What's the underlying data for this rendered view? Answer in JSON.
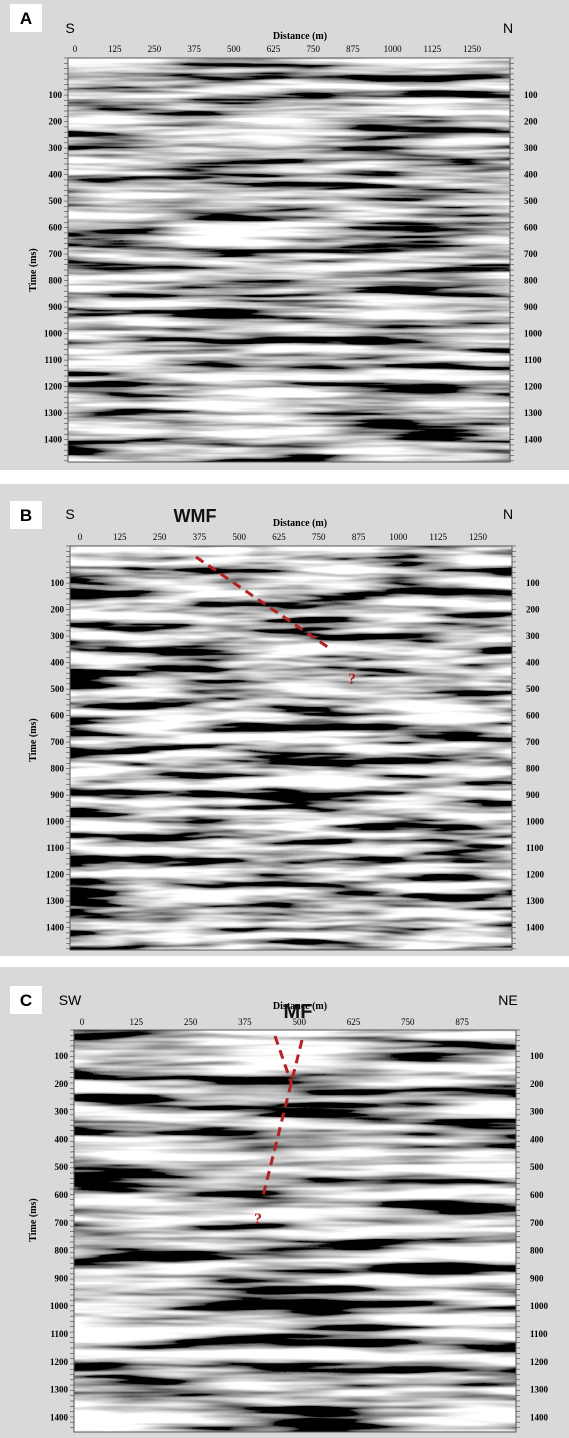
{
  "panels": [
    {
      "label": "A",
      "left": "S",
      "right": "N",
      "x_title": "Distance (m)",
      "y_title": "Time (ms)",
      "x_ticks": [
        "0",
        "125",
        "250",
        "375",
        "500",
        "625",
        "750",
        "875",
        "1000",
        "1125",
        "1250"
      ],
      "y_ticks": [
        "100",
        "200",
        "300",
        "400",
        "500",
        "600",
        "700",
        "800",
        "900",
        "1000",
        "1100",
        "1200",
        "1300",
        "1400"
      ],
      "annotations": []
    },
    {
      "label": "B",
      "left": "S",
      "right": "N",
      "x_title": "Distance (m)",
      "y_title": "Time (ms)",
      "x_ticks": [
        "0",
        "125",
        "250",
        "375",
        "500",
        "625",
        "750",
        "875",
        "1000",
        "1125",
        "1250"
      ],
      "y_ticks": [
        "100",
        "200",
        "300",
        "400",
        "500",
        "600",
        "700",
        "800",
        "900",
        "1000",
        "1100",
        "1200",
        "1300",
        "1400"
      ],
      "annotations": [
        "WMF",
        "?"
      ]
    },
    {
      "label": "C",
      "left": "SW",
      "right": "NE",
      "x_title": "Distance (m)",
      "y_title": "Time (ms)",
      "x_ticks": [
        "0",
        "125",
        "250",
        "375",
        "500",
        "625",
        "750",
        "875"
      ],
      "y_ticks": [
        "100",
        "200",
        "300",
        "400",
        "500",
        "600",
        "700",
        "800",
        "900",
        "1000",
        "1100",
        "1200",
        "1300",
        "1400"
      ],
      "annotations": [
        "MF",
        "?"
      ]
    }
  ]
}
